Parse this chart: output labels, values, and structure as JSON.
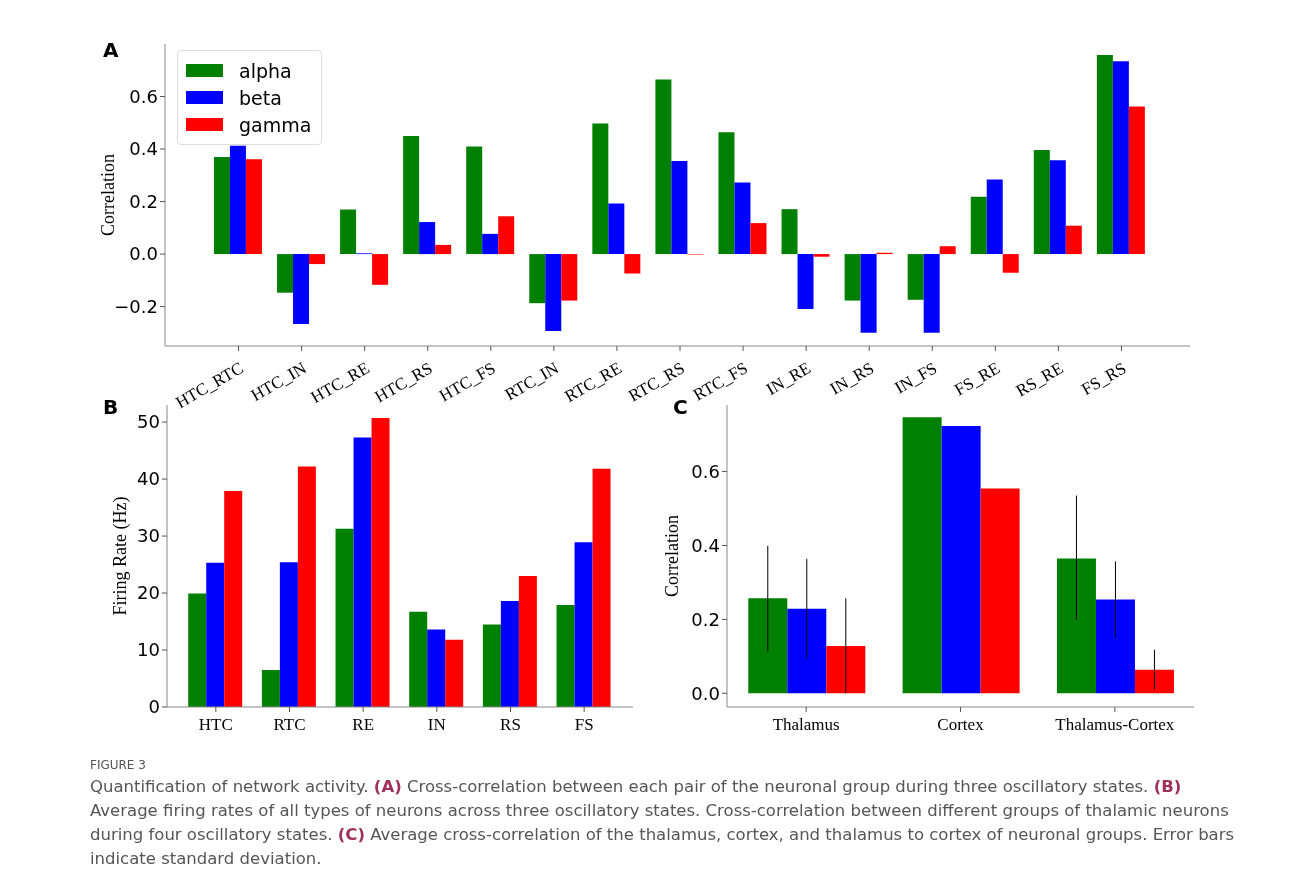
{
  "chart_data": [
    {
      "type": "bar",
      "title": "A",
      "ylabel": "Correlation",
      "legend": "top left",
      "categories": [
        "HTC_RTC",
        "HTC_IN",
        "HTC_RE",
        "HTC_RS",
        "HTC_FS",
        "RTC_IN",
        "RTC_RE",
        "RTC_RS",
        "RTC_FS",
        "IN_RE",
        "IN_RS",
        "IN_FS",
        "FS_RE",
        "RS_RE",
        "FS_RS"
      ],
      "series": [
        {
          "name": "alpha",
          "color": "#008000",
          "values": [
            0.37,
            -0.147,
            0.17,
            0.45,
            0.41,
            -0.187,
            0.497,
            0.665,
            0.464,
            0.171,
            -0.177,
            -0.174,
            0.218,
            0.396,
            0.758
          ]
        },
        {
          "name": "beta",
          "color": "#0000ff",
          "values": [
            0.413,
            -0.266,
            0.003,
            0.122,
            0.077,
            -0.293,
            0.193,
            0.354,
            0.273,
            -0.209,
            -0.3,
            -0.3,
            0.284,
            0.357,
            0.734
          ]
        },
        {
          "name": "gamma",
          "color": "#ff0000",
          "values": [
            0.361,
            -0.038,
            -0.117,
            0.035,
            0.144,
            -0.177,
            -0.074,
            -0.002,
            0.118,
            -0.01,
            0.005,
            0.03,
            -0.071,
            0.108,
            0.562
          ]
        }
      ],
      "ylim": [
        -0.35,
        0.8
      ],
      "yticks": [
        {
          "value": -0.2,
          "label": "−0.2"
        },
        {
          "value": 0,
          "label": "0.0"
        },
        {
          "value": 0.2,
          "label": "0.2"
        },
        {
          "value": 0.4,
          "label": "0.4"
        },
        {
          "value": 0.6,
          "label": "0.6"
        }
      ]
    },
    {
      "type": "bar",
      "title": "B",
      "ylabel": "Firing Rate (Hz)",
      "categories": [
        "HTC",
        "RTC",
        "RE",
        "IN",
        "RS",
        "FS"
      ],
      "series": [
        {
          "color": "#008000",
          "values": [
            19.9,
            6.5,
            31.3,
            16.7,
            14.5,
            17.9
          ]
        },
        {
          "color": "#0000ff",
          "values": [
            25.3,
            25.4,
            47.3,
            13.6,
            18.6,
            28.9
          ]
        },
        {
          "color": "#ff0000",
          "values": [
            37.9,
            42.2,
            50.7,
            11.8,
            23.0,
            41.8
          ]
        }
      ],
      "ylim": [
        0,
        53
      ],
      "yticks": [
        0,
        10,
        20,
        30,
        40,
        50
      ]
    },
    {
      "type": "bar",
      "title": "C",
      "ylabel": "Correlation",
      "categories": [
        "Thalamus",
        "Cortex",
        "Thalamus-Cortex"
      ],
      "series": [
        {
          "color": "#008000",
          "values": [
            0.257,
            0.747,
            0.365
          ],
          "errors": [
            [
              0.113,
              0.399
            ],
            null,
            [
              0.198,
              0.535
            ]
          ]
        },
        {
          "color": "#0000ff",
          "values": [
            0.229,
            0.723,
            0.254
          ],
          "errors": [
            [
              0.094,
              0.364
            ],
            null,
            [
              0.151,
              0.357
            ]
          ]
        },
        {
          "color": "#ff0000",
          "values": [
            0.128,
            0.554,
            0.064
          ],
          "errors": [
            [
              0,
              0.257
            ],
            null,
            [
              0.01,
              0.118
            ]
          ]
        }
      ],
      "ylim": [
        -0.037,
        0.78
      ],
      "yticks": [
        {
          "value": 0,
          "label": "0.0"
        },
        {
          "value": 0.2,
          "label": "0.2"
        },
        {
          "value": 0.4,
          "label": "0.4"
        },
        {
          "value": 0.6,
          "label": "0.6"
        }
      ],
      "annotations": [
        "FIGURE 3",
        "Quantification of network activity. (A) Cross-correlation between each pair of the neuronal group during three oscillatory states. (B) Average firing rates of all types of neurons across three oscillatory states. Cross-correlation between different groups of thalamic neurons during four oscillatory states. (C) Average cross-correlation of the thalamus, cortex, and thalamus to cortex of neuronal groups. Error bars indicate standard deviation."
      ]
    }
  ]
}
